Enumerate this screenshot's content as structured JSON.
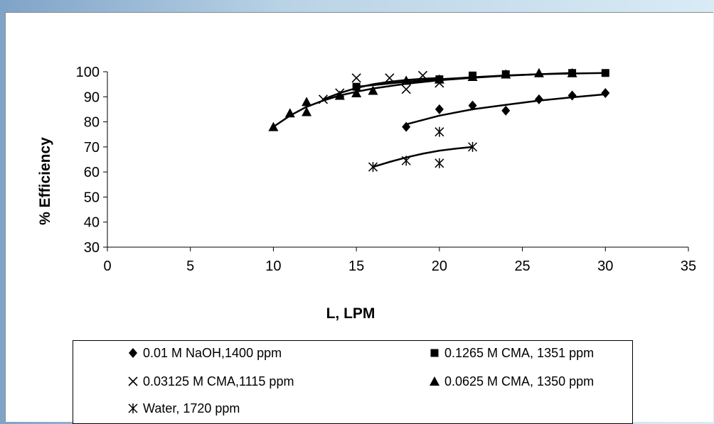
{
  "chart_data": {
    "type": "scatter",
    "xlabel": "L, LPM",
    "ylabel": "% Efficiency",
    "xlim": [
      0,
      35
    ],
    "ylim": [
      30,
      100
    ],
    "xticks": [
      "0",
      "5",
      "10",
      "15",
      "20",
      "25",
      "30",
      "35"
    ],
    "yticks": [
      "30",
      "40",
      "50",
      "60",
      "70",
      "80",
      "90",
      "100"
    ],
    "grid": false,
    "legend_position": "bottom",
    "series": [
      {
        "name": "0.01 M NaOH,1400 ppm",
        "marker": "diamond",
        "x": [
          18,
          20,
          22,
          24,
          26,
          28,
          30
        ],
        "y": [
          78,
          85,
          86.5,
          84.5,
          89,
          90.5,
          91.5
        ],
        "trend": [
          [
            18,
            79
          ],
          [
            20,
            82.5
          ],
          [
            22,
            85
          ],
          [
            24,
            86.8
          ],
          [
            26,
            88.5
          ],
          [
            28,
            89.8
          ],
          [
            30,
            91
          ]
        ]
      },
      {
        "name": "0.1265 M CMA, 1351 ppm",
        "marker": "square",
        "x": [
          15,
          20,
          22,
          24,
          28,
          30
        ],
        "y": [
          94,
          97,
          98.5,
          99,
          99.5,
          99.5
        ],
        "trend": [
          [
            15,
            94
          ],
          [
            18,
            96
          ],
          [
            20,
            97
          ],
          [
            22,
            97.8
          ],
          [
            24,
            98.5
          ],
          [
            26,
            99
          ],
          [
            28,
            99.3
          ],
          [
            30,
            99.5
          ]
        ]
      },
      {
        "name": "0.03125 M CMA,1115 ppm",
        "marker": "x",
        "x": [
          13,
          14,
          15,
          17,
          18,
          19,
          20
        ],
        "y": [
          89,
          91.5,
          97.5,
          97.5,
          93,
          98.5,
          95.5
        ],
        "trend": [
          [
            13,
            89
          ],
          [
            14,
            91.5
          ],
          [
            15,
            93.5
          ],
          [
            16,
            95
          ],
          [
            17,
            96
          ],
          [
            18,
            96.7
          ],
          [
            19,
            97.2
          ],
          [
            20,
            97.5
          ]
        ]
      },
      {
        "name": "0.0625 M CMA, 1350 ppm",
        "marker": "triangle",
        "x": [
          10,
          11,
          12,
          12,
          14,
          15,
          16,
          18,
          20,
          22,
          24,
          26,
          28
        ],
        "y": [
          78,
          83.5,
          84,
          88,
          90.5,
          91.5,
          92.5,
          96.5,
          97,
          98,
          99,
          99.5,
          99.5
        ],
        "trend": [
          [
            10,
            78
          ],
          [
            11,
            82.5
          ],
          [
            12,
            86
          ],
          [
            13,
            88.5
          ],
          [
            14,
            90.5
          ],
          [
            15,
            92
          ],
          [
            16,
            93.3
          ],
          [
            18,
            95.2
          ],
          [
            20,
            96.6
          ],
          [
            22,
            97.6
          ],
          [
            24,
            98.4
          ],
          [
            26,
            99
          ],
          [
            28,
            99.5
          ]
        ]
      },
      {
        "name": "Water, 1720 ppm",
        "marker": "asterisk",
        "x": [
          16,
          18,
          20,
          20,
          22
        ],
        "y": [
          62,
          64.5,
          76,
          63.5,
          70
        ],
        "trend": [
          [
            16,
            62
          ],
          [
            17,
            64
          ],
          [
            18,
            65.8
          ],
          [
            19,
            67.3
          ],
          [
            20,
            68.5
          ],
          [
            21,
            69.3
          ],
          [
            22,
            70
          ]
        ]
      }
    ]
  }
}
